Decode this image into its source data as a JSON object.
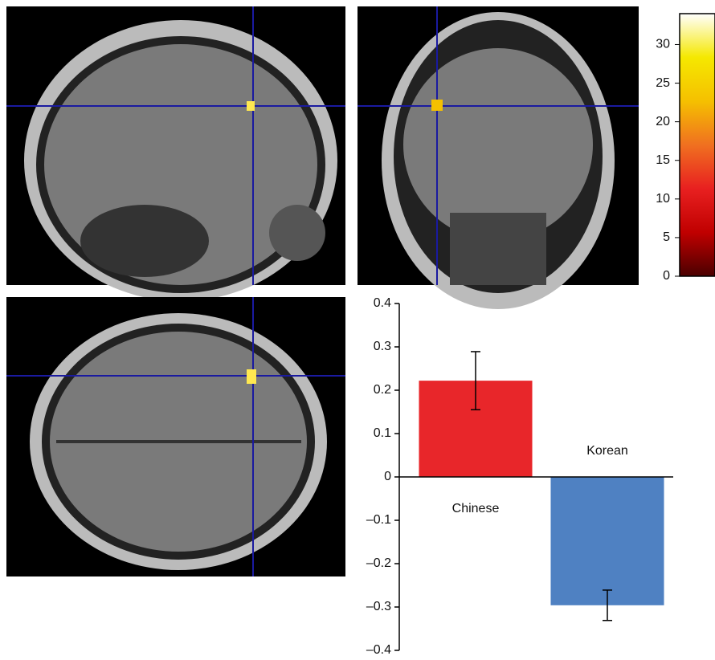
{
  "chart_data": {
    "type": "bar",
    "categories": [
      "Chinese",
      "Korean"
    ],
    "values": [
      0.222,
      -0.296
    ],
    "errors": [
      0.067,
      0.035
    ],
    "colors": [
      "#e8262a",
      "#4f81c2"
    ],
    "ylim": [
      -0.4,
      0.4
    ],
    "yticks": [
      0.4,
      0.3,
      0.2,
      0.1,
      0,
      {
        "value": -0.1,
        "label": "–0.1"
      },
      {
        "value": -0.2,
        "label": "–0.2"
      },
      {
        "value": -0.3,
        "label": "–0.3"
      },
      {
        "value": -0.4,
        "label": "–0.4"
      }
    ],
    "colorbar": {
      "lim": [
        0,
        34
      ],
      "ticks": [
        0,
        5,
        10,
        15,
        20,
        25,
        30
      ],
      "colors": [
        "#4a0000",
        "#c00000",
        "#e82020",
        "#f07020",
        "#f5c000",
        "#f5e800",
        "#ffffff"
      ]
    }
  }
}
